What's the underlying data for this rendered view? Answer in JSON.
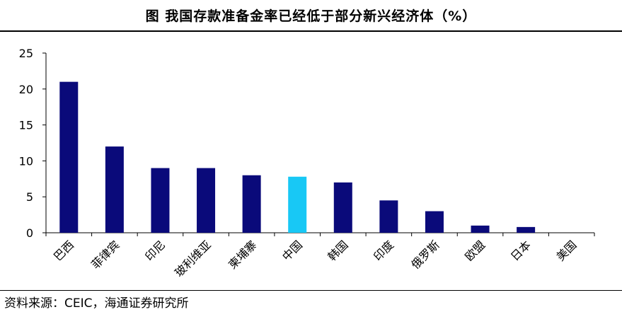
{
  "header": {
    "title": "图 我国存款准备金率已经低于部分新兴经济体（%）"
  },
  "footer": {
    "source": "资料来源：CEIC，海通证券研究所"
  },
  "chart_data": {
    "type": "bar",
    "title": "图 我国存款准备金率已经低于部分新兴经济体（%）",
    "xlabel": "",
    "ylabel": "",
    "categories": [
      "巴西",
      "菲律宾",
      "印尼",
      "玻利维亚",
      "柬埔寨",
      "中国",
      "韩国",
      "印度",
      "俄罗斯",
      "欧盟",
      "日本",
      "美国"
    ],
    "values": [
      21,
      12,
      9,
      9,
      8,
      7.8,
      7,
      4.5,
      3,
      1,
      0.8,
      0
    ],
    "ylim": [
      0,
      25
    ],
    "yticks": [
      0,
      5,
      10,
      15,
      20,
      25
    ],
    "grid": false,
    "legend": "none",
    "colors": {
      "bar": "#0a0a7a",
      "highlight": "#18c8f5",
      "axis": "#000000"
    },
    "highlight_category": "中国"
  }
}
